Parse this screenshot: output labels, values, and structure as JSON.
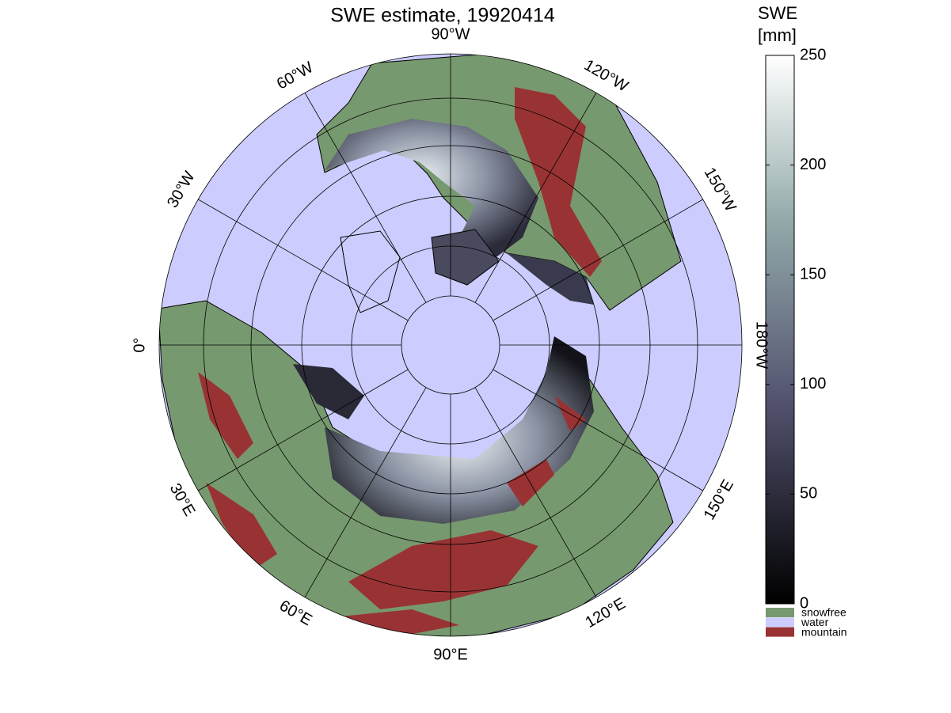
{
  "title": "SWE estimate, 19920414",
  "map": {
    "meridians": [
      {
        "value": -90,
        "label": "90°W"
      },
      {
        "value": -120,
        "label": "120°W"
      },
      {
        "value": -150,
        "label": "150°W"
      },
      {
        "value": -180,
        "label": "180°W"
      },
      {
        "value": 150,
        "label": "150°E"
      },
      {
        "value": 120,
        "label": "120°E"
      },
      {
        "value": 90,
        "label": "90°E"
      },
      {
        "value": 60,
        "label": "60°E"
      },
      {
        "value": 30,
        "label": "30°E"
      },
      {
        "value": 0,
        "label": "0°"
      },
      {
        "value": -30,
        "label": "30°W"
      },
      {
        "value": -60,
        "label": "60°W"
      }
    ]
  },
  "colorbar": {
    "title": [
      "SWE",
      "[mm]"
    ],
    "range": [
      0,
      250
    ],
    "ticks": [
      0,
      50,
      100,
      150,
      200,
      250
    ],
    "legend": [
      {
        "name": "snowfree",
        "color": "#77996f"
      },
      {
        "name": "water",
        "color": "#ccccff"
      },
      {
        "name": "mountain",
        "color": "#993333"
      }
    ]
  }
}
